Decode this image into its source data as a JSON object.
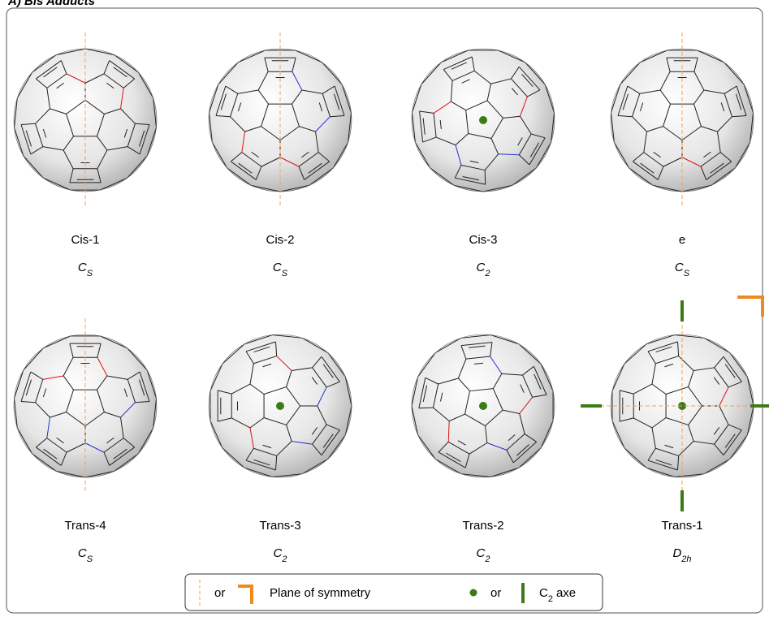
{
  "header": {
    "title": "A) Bis Adducts"
  },
  "molecules": [
    {
      "name": "Cis-1",
      "symmetry": {
        "main": "C",
        "sub": "S"
      }
    },
    {
      "name": "Cis-2",
      "symmetry": {
        "main": "C",
        "sub": "S"
      }
    },
    {
      "name": "Cis-3",
      "symmetry": {
        "main": "C",
        "sub": "2"
      }
    },
    {
      "name": "e",
      "symmetry": {
        "main": "C",
        "sub": "S"
      }
    },
    {
      "name": "Trans-4",
      "symmetry": {
        "main": "C",
        "sub": "S"
      }
    },
    {
      "name": "Trans-3",
      "symmetry": {
        "main": "C",
        "sub": "2"
      }
    },
    {
      "name": "Trans-2",
      "symmetry": {
        "main": "C",
        "sub": "2"
      }
    },
    {
      "name": "Trans-1",
      "symmetry": {
        "main": "D",
        "sub": "2h"
      }
    }
  ],
  "legend": {
    "or_1": "or",
    "plane": "Plane of symmetry",
    "or_2": "or",
    "axis": {
      "main": "C",
      "sub": "2",
      "rest": "axe"
    }
  }
}
